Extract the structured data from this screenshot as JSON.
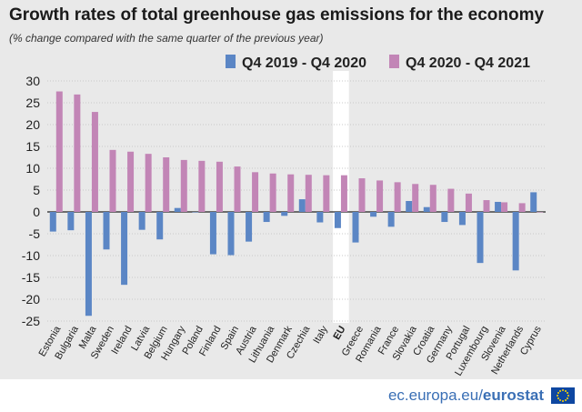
{
  "title": "Growth rates of total greenhouse gas emissions for the economy",
  "subtitle": "(% change compared with the same quarter of the previous year)",
  "footer": {
    "site": "ec.europa.eu/",
    "brand": "eurostat"
  },
  "colors": {
    "series1": "#5b86c5",
    "series2": "#c285b6",
    "highlight": "#ffffff",
    "background": "#e9e9e9"
  },
  "chart_data": {
    "type": "bar",
    "ylim": [
      -25,
      30
    ],
    "yticks": [
      "30",
      "25",
      "20",
      "15",
      "10",
      "5",
      "0",
      "-5",
      "-10",
      "-15",
      "-20",
      "-25"
    ],
    "grid": true,
    "legend_position": "top-right",
    "highlight_category": "EU",
    "categories": [
      "Estonia",
      "Bulgaria",
      "Malta",
      "Sweden",
      "Ireland",
      "Latvia",
      "Belgium",
      "Hungary",
      "Poland",
      "Finland",
      "Spain",
      "Austria",
      "Lithuania",
      "Denmark",
      "Czechia",
      "Italy",
      "EU",
      "Greece",
      "Romania",
      "France",
      "Slovakia",
      "Croatia",
      "Germany",
      "Portugal",
      "Luxembourg",
      "Slovenia",
      "Netherlands",
      "Cyprus"
    ],
    "series": [
      {
        "name": "Q4 2019 - Q4 2020",
        "values": [
          -4.5,
          -4.2,
          -23.8,
          -8.6,
          -16.7,
          -4.1,
          -6.3,
          0.9,
          0.0,
          -9.7,
          -9.9,
          -6.8,
          -2.3,
          -0.9,
          2.9,
          -2.4,
          -3.7,
          -7.0,
          -1.1,
          -3.4,
          2.5,
          1.1,
          -2.3,
          -3.0,
          -11.7,
          2.3,
          -13.4,
          4.5
        ]
      },
      {
        "name": "Q4 2020 - Q4 2021",
        "values": [
          27.6,
          26.9,
          22.9,
          14.2,
          13.8,
          13.3,
          12.5,
          11.9,
          11.7,
          11.5,
          10.4,
          9.1,
          8.8,
          8.6,
          8.5,
          8.4,
          8.4,
          7.7,
          7.2,
          6.8,
          6.4,
          6.2,
          5.3,
          4.2,
          2.7,
          2.2,
          2.0,
          0.0
        ]
      }
    ]
  }
}
